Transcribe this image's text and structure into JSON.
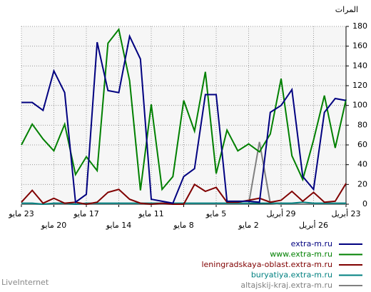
{
  "chart_data": {
    "type": "line",
    "ylabel": "المرات",
    "categories": [
      "23 مايو",
      null,
      null,
      "20 مايو",
      null,
      null,
      "17 مايو",
      null,
      null,
      "14 مايو",
      null,
      null,
      "11 مايو",
      null,
      null,
      "8 مايو",
      null,
      null,
      "5 مايو",
      null,
      null,
      "2 مايو",
      null,
      null,
      "29 أبريل",
      null,
      null,
      "26 أبريل",
      null,
      null,
      "23 أبريل"
    ],
    "series": [
      {
        "name": "extra-m.ru",
        "color": "#000080",
        "values": [
          103,
          103,
          95,
          135,
          113,
          2,
          10,
          164,
          115,
          113,
          170,
          147,
          5,
          3,
          1,
          28,
          36,
          111,
          111,
          3,
          3,
          3,
          2,
          93,
          100,
          116,
          28,
          15,
          93,
          107,
          105
        ]
      },
      {
        "name": "www.extra-m.ru",
        "color": "#008000",
        "values": [
          60,
          81,
          66,
          54,
          81,
          30,
          48,
          34,
          163,
          177,
          125,
          14,
          101,
          15,
          28,
          105,
          74,
          134,
          31,
          75,
          54,
          61,
          53,
          71,
          127,
          49,
          25,
          65,
          110,
          57,
          106
        ]
      },
      {
        "name": "leningradskaya-oblast.extra-m.ru",
        "color": "#800000",
        "values": [
          2,
          14,
          1,
          6,
          1,
          2,
          0,
          2,
          12,
          15,
          5,
          1,
          0,
          1,
          0,
          0,
          20,
          13,
          17,
          2,
          2,
          4,
          6,
          2,
          4,
          13,
          3,
          12,
          2,
          3,
          21
        ]
      },
      {
        "name": "buryatiya.extra-m.ru",
        "color": "#008080",
        "values": [
          1,
          1,
          0,
          1,
          1,
          0,
          1,
          1,
          1,
          1,
          1,
          1,
          1,
          1,
          1,
          1,
          1,
          1,
          1,
          1,
          1,
          1,
          1,
          1,
          1,
          1,
          2,
          1,
          1,
          1,
          1
        ]
      },
      {
        "name": "altajskij-kraj.extra-m.ru",
        "color": "#808080",
        "values": [
          0,
          0,
          0,
          0,
          0,
          0,
          0,
          0,
          0,
          0,
          0,
          0,
          0,
          0,
          0,
          0,
          0,
          0,
          0,
          0,
          0,
          0,
          63,
          1,
          0,
          0,
          0,
          0,
          0,
          0,
          0
        ]
      }
    ],
    "ylim": [
      0,
      180
    ],
    "yticks": [
      0,
      20,
      40,
      60,
      80,
      100,
      120,
      140,
      160,
      180
    ],
    "grid": true,
    "footer": "LiveInternet"
  }
}
